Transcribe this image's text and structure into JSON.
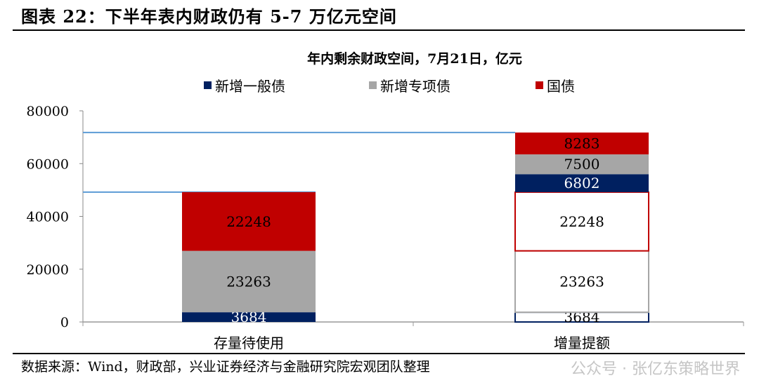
{
  "figure_title": "图表 22：下半年表内财政仍有 5-7 万亿元空间",
  "source": "数据来源：Wind，财政部，兴业证券经济与金融研究院宏观团队整理",
  "watermark": "公众号 · 张亿东策略世界",
  "chart_data": {
    "type": "bar",
    "stacked": true,
    "title": "年内剩余财政空间，7月21日，亿元",
    "categories": [
      "存量待使用",
      "增量提额"
    ],
    "ylim": [
      0,
      80000
    ],
    "yticks": [
      "0",
      "20000",
      "40000",
      "60000",
      "80000"
    ],
    "legend_position": "top",
    "series": [
      {
        "name": "新增一般债",
        "color": "#002060",
        "values": [
          3684,
          6802
        ],
        "note_outline_segments": [
          3684
        ]
      },
      {
        "name": "新增专项债",
        "color": "#A6A6A6",
        "values": [
          23263,
          7500
        ]
      },
      {
        "name": "国债",
        "color": "#C00000",
        "values": [
          22248,
          8283
        ]
      }
    ],
    "segments": [
      [
        {
          "series": "新增一般债",
          "value": 3684,
          "style": "filled",
          "label": "3684"
        },
        {
          "series": "新增专项债",
          "value": 23263,
          "style": "filled",
          "label": "23263"
        },
        {
          "series": "国债",
          "value": 22248,
          "style": "filled",
          "label": "22248"
        }
      ],
      [
        {
          "series": "新增一般债",
          "value": 3684,
          "style": "outline",
          "label": "3684"
        },
        {
          "series": "新增专项债",
          "value": 23263,
          "style": "outline",
          "label": "23263"
        },
        {
          "series": "国债",
          "value": 22248,
          "style": "outline",
          "label": "22248"
        },
        {
          "series": "新增一般债",
          "value": 6802,
          "style": "filled",
          "label": "6802"
        },
        {
          "series": "新增专项债",
          "value": 7500,
          "style": "filled",
          "label": "7500"
        },
        {
          "series": "国债",
          "value": 8283,
          "style": "filled",
          "label": "8283"
        }
      ]
    ]
  }
}
